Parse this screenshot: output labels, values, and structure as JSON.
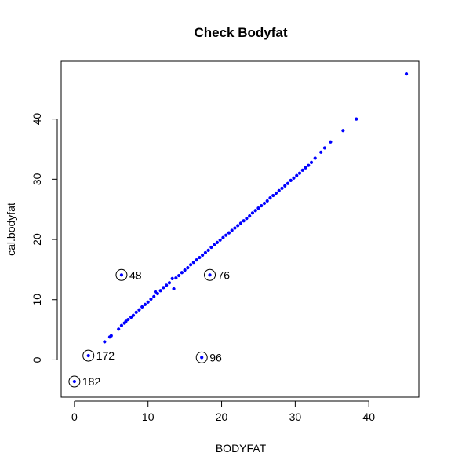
{
  "chart_data": {
    "type": "scatter",
    "title": "Check Bodyfat",
    "xlabel": "BODYFAT",
    "ylabel": "cal.bodyfat",
    "xlim": [
      -1.8,
      46.8
    ],
    "ylim": [
      -6.2,
      49.6
    ],
    "x_ticks": [
      0,
      10,
      20,
      30,
      40
    ],
    "y_ticks": [
      0,
      10,
      20,
      30,
      40
    ],
    "grid": false,
    "point_color": "#0000ff",
    "series": [
      {
        "values": [
          [
            4.1,
            3.0
          ],
          [
            4.8,
            3.8
          ],
          [
            5.0,
            4.0
          ],
          [
            6.0,
            5.1
          ],
          [
            6.4,
            5.7
          ],
          [
            6.8,
            6.1
          ],
          [
            7.0,
            6.4
          ],
          [
            7.3,
            6.7
          ],
          [
            7.7,
            7.1
          ],
          [
            8.0,
            7.4
          ],
          [
            8.4,
            7.9
          ],
          [
            8.8,
            8.3
          ],
          [
            9.2,
            8.8
          ],
          [
            9.6,
            9.2
          ],
          [
            10.0,
            9.6
          ],
          [
            10.4,
            10.1
          ],
          [
            10.8,
            10.5
          ],
          [
            11.0,
            11.3
          ],
          [
            11.3,
            11.0
          ],
          [
            11.7,
            11.5
          ],
          [
            12.1,
            12.0
          ],
          [
            12.5,
            12.4
          ],
          [
            12.9,
            12.8
          ],
          [
            13.3,
            13.5
          ],
          [
            13.5,
            11.8
          ],
          [
            13.8,
            13.6
          ],
          [
            14.2,
            14.0
          ],
          [
            14.6,
            14.5
          ],
          [
            15.0,
            14.9
          ],
          [
            15.4,
            15.3
          ],
          [
            15.8,
            15.8
          ],
          [
            16.2,
            16.2
          ],
          [
            16.6,
            16.6
          ],
          [
            17.0,
            17.0
          ],
          [
            17.4,
            17.4
          ],
          [
            17.8,
            17.8
          ],
          [
            18.2,
            18.2
          ],
          [
            18.6,
            18.7
          ],
          [
            19.0,
            19.1
          ],
          [
            19.4,
            19.5
          ],
          [
            19.8,
            19.9
          ],
          [
            20.2,
            20.3
          ],
          [
            20.6,
            20.7
          ],
          [
            21.0,
            21.1
          ],
          [
            21.4,
            21.5
          ],
          [
            21.8,
            21.9
          ],
          [
            22.2,
            22.3
          ],
          [
            22.6,
            22.7
          ],
          [
            23.0,
            23.1
          ],
          [
            23.4,
            23.5
          ],
          [
            23.8,
            23.9
          ],
          [
            24.2,
            24.4
          ],
          [
            24.6,
            24.8
          ],
          [
            25.0,
            25.2
          ],
          [
            25.4,
            25.6
          ],
          [
            25.8,
            26.0
          ],
          [
            26.2,
            26.4
          ],
          [
            26.6,
            26.9
          ],
          [
            27.0,
            27.3
          ],
          [
            27.4,
            27.7
          ],
          [
            27.8,
            28.1
          ],
          [
            28.2,
            28.5
          ],
          [
            28.6,
            28.9
          ],
          [
            29.0,
            29.3
          ],
          [
            29.4,
            29.8
          ],
          [
            29.8,
            30.2
          ],
          [
            30.2,
            30.6
          ],
          [
            30.6,
            31.0
          ],
          [
            31.0,
            31.5
          ],
          [
            31.4,
            31.9
          ],
          [
            31.8,
            32.3
          ],
          [
            32.2,
            32.8
          ],
          [
            32.7,
            33.5
          ],
          [
            33.5,
            34.5
          ],
          [
            34.0,
            35.2
          ],
          [
            34.8,
            36.2
          ],
          [
            36.5,
            38.1
          ],
          [
            38.3,
            40.0
          ],
          [
            45.1,
            47.5
          ],
          [
            6.4,
            14.1
          ],
          [
            18.4,
            14.1
          ],
          [
            17.3,
            0.4
          ],
          [
            1.9,
            0.7
          ],
          [
            0.0,
            -3.6
          ]
        ]
      }
    ],
    "highlighted": [
      {
        "label": "48",
        "x": 6.4,
        "y": 14.1
      },
      {
        "label": "76",
        "x": 18.4,
        "y": 14.1
      },
      {
        "label": "172",
        "x": 1.9,
        "y": 0.7
      },
      {
        "label": "96",
        "x": 17.3,
        "y": 0.4
      },
      {
        "label": "182",
        "x": 0.0,
        "y": -3.6
      }
    ]
  }
}
